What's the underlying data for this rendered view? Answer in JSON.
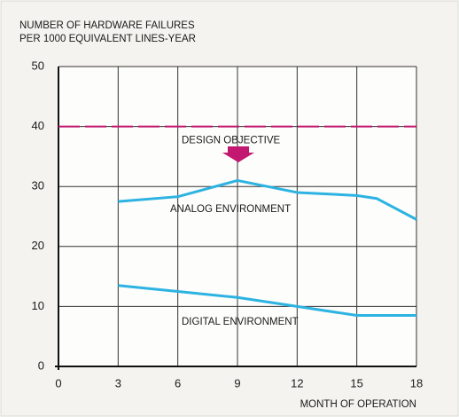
{
  "chart_data": {
    "type": "line",
    "title": [
      "NUMBER OF HARDWARE FAILURES",
      "PER 1000 EQUIVALENT LINES-YEAR"
    ],
    "x_label": "MONTH OF OPERATION",
    "xlim": [
      0,
      18
    ],
    "xticks": [
      0,
      3,
      6,
      9,
      12,
      15,
      18
    ],
    "ylim": [
      0,
      50
    ],
    "yticks": [
      0,
      10,
      20,
      30,
      40,
      50
    ],
    "grid": true,
    "reference_line": {
      "value": 40,
      "label": "DESIGN OBJECTIVE",
      "color": "#c2186f"
    },
    "series": [
      {
        "name": "ANALOG ENVIRONMENT",
        "color": "#2cb3e2",
        "x": [
          3,
          6,
          9,
          12,
          15,
          16,
          18
        ],
        "values": [
          27.5,
          28.3,
          31,
          29,
          28.5,
          28,
          24.5
        ]
      },
      {
        "name": "DIGITAL ENVIRONMENT",
        "color": "#2cb3e2",
        "x": [
          3,
          6,
          9,
          12,
          15,
          18
        ],
        "values": [
          13.5,
          12.5,
          11.5,
          10,
          8.5,
          8.5
        ]
      }
    ]
  }
}
